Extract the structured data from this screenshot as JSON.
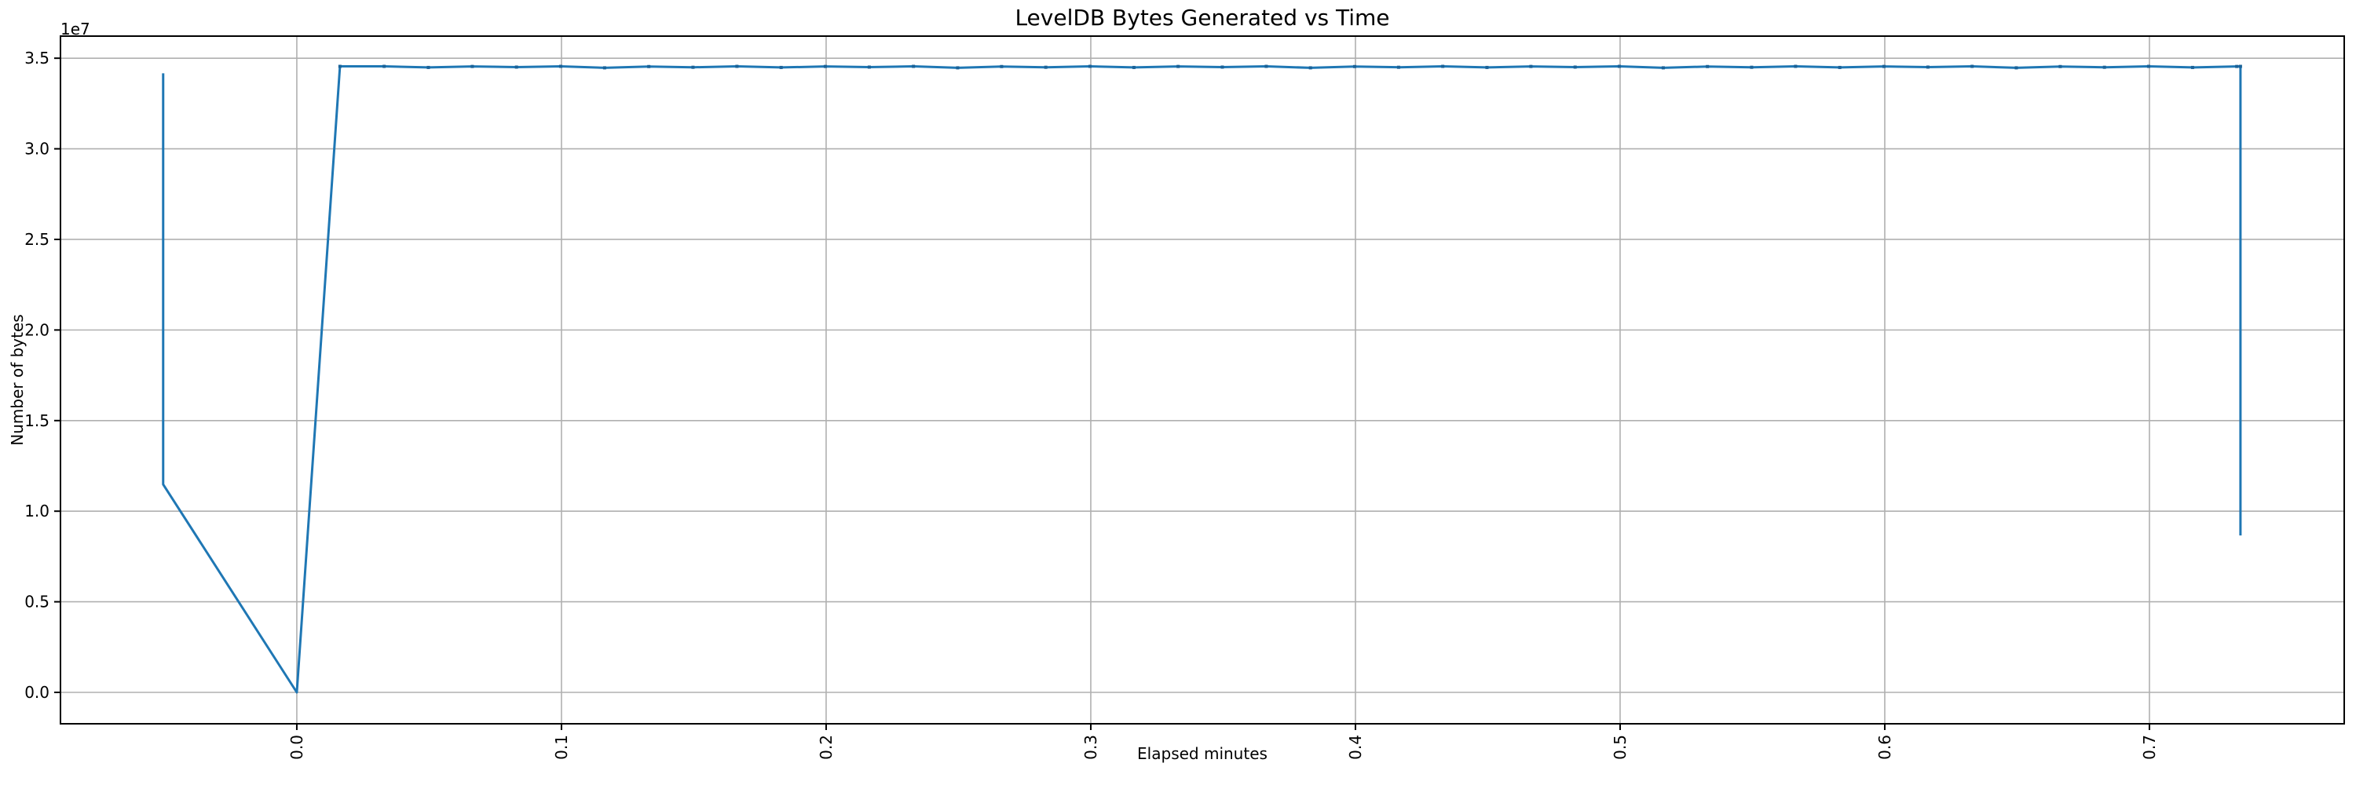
{
  "chart_data": {
    "type": "line",
    "title": "LevelDB Bytes Generated vs Time",
    "xlabel": "Elapsed minutes",
    "ylabel": "Number of bytes",
    "y_offset_label": "1e7",
    "grid": true,
    "legend_position": "none",
    "x_tick_rotation_deg": 90,
    "xlim": [
      -0.0893,
      0.7736
    ],
    "ylim": [
      -1733000,
      36220000
    ],
    "xticks": {
      "values": [
        0.0,
        0.1,
        0.2,
        0.3,
        0.4,
        0.5,
        0.6,
        0.7
      ],
      "labels": [
        "0.0",
        "0.1",
        "0.2",
        "0.3",
        "0.4",
        "0.5",
        "0.6",
        "0.7"
      ]
    },
    "yticks": {
      "values": [
        0,
        5000000,
        10000000,
        15000000,
        20000000,
        25000000,
        30000000,
        35000000
      ],
      "labels": [
        "0.0",
        "0.5",
        "1.0",
        "1.5",
        "2.0",
        "2.5",
        "3.0",
        "3.5"
      ]
    },
    "colors": {
      "line": "#1f77b4",
      "joint": "#1a6298",
      "grid": "#b0b0b0",
      "axis": "#000000",
      "background": "#ffffff"
    },
    "series": [
      {
        "name": "LevelDB bytes generated",
        "points": [
          [
            -0.0505,
            34170000
          ],
          [
            -0.0505,
            11480000
          ],
          [
            0.0,
            0
          ],
          [
            0.0163,
            34550000
          ],
          [
            0.033,
            34550000
          ],
          [
            0.0497,
            34490000
          ],
          [
            0.0663,
            34545000
          ],
          [
            0.083,
            34510000
          ],
          [
            0.0997,
            34550000
          ],
          [
            0.1163,
            34470000
          ],
          [
            0.133,
            34540000
          ],
          [
            0.1497,
            34500000
          ],
          [
            0.1663,
            34550000
          ],
          [
            0.183,
            34490000
          ],
          [
            0.1997,
            34545000
          ],
          [
            0.2163,
            34510000
          ],
          [
            0.233,
            34550000
          ],
          [
            0.2497,
            34470000
          ],
          [
            0.2663,
            34540000
          ],
          [
            0.283,
            34500000
          ],
          [
            0.2997,
            34550000
          ],
          [
            0.3163,
            34490000
          ],
          [
            0.333,
            34545000
          ],
          [
            0.3497,
            34510000
          ],
          [
            0.3663,
            34550000
          ],
          [
            0.383,
            34470000
          ],
          [
            0.3997,
            34540000
          ],
          [
            0.4163,
            34500000
          ],
          [
            0.433,
            34550000
          ],
          [
            0.4497,
            34490000
          ],
          [
            0.4663,
            34545000
          ],
          [
            0.483,
            34510000
          ],
          [
            0.4997,
            34550000
          ],
          [
            0.5163,
            34470000
          ],
          [
            0.533,
            34540000
          ],
          [
            0.5497,
            34500000
          ],
          [
            0.5663,
            34550000
          ],
          [
            0.583,
            34490000
          ],
          [
            0.5997,
            34545000
          ],
          [
            0.6163,
            34510000
          ],
          [
            0.633,
            34550000
          ],
          [
            0.6497,
            34470000
          ],
          [
            0.6663,
            34540000
          ],
          [
            0.683,
            34500000
          ],
          [
            0.6997,
            34550000
          ],
          [
            0.7163,
            34490000
          ],
          [
            0.733,
            34545000
          ],
          [
            0.7344,
            34550000
          ],
          [
            0.7344,
            8660000
          ]
        ]
      }
    ]
  }
}
